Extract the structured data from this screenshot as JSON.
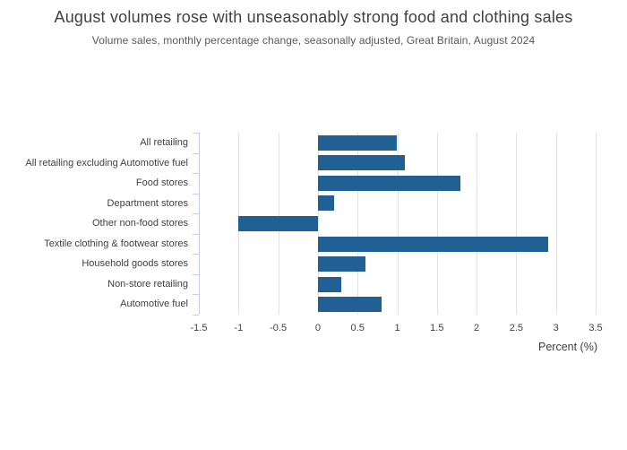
{
  "header": {
    "title": "August volumes rose with unseasonably strong food and clothing sales",
    "subtitle": "Volume sales, monthly percentage change, seasonally adjusted, Great Britain, August 2024"
  },
  "chart_data": {
    "type": "bar",
    "orientation": "horizontal",
    "title": "August volumes rose with unseasonably strong food and clothing sales",
    "subtitle": "Volume sales, monthly percentage change, seasonally adjusted, Great Britain, August 2024",
    "categories": [
      "All retailing",
      "All retailing excluding Automotive fuel",
      "Food stores",
      "Department stores",
      "Other non-food stores",
      "Textile clothing & footwear stores",
      "Household goods stores",
      "Non-store retailing",
      "Automotive fuel"
    ],
    "values": [
      1.0,
      1.1,
      1.8,
      0.2,
      -1.0,
      2.9,
      0.6,
      0.3,
      0.8
    ],
    "xlabel": "Percent (%)",
    "ylabel": "",
    "xlim": [
      -1.5,
      3.5
    ],
    "xticks": [
      {
        "value": -1.5,
        "label": "-1.5"
      },
      {
        "value": -1.0,
        "label": "-1"
      },
      {
        "value": -0.5,
        "label": "-0.5"
      },
      {
        "value": 0.0,
        "label": "0"
      },
      {
        "value": 0.5,
        "label": "0.5"
      },
      {
        "value": 1.0,
        "label": "1"
      },
      {
        "value": 1.5,
        "label": "1.5"
      },
      {
        "value": 2.0,
        "label": "2"
      },
      {
        "value": 2.5,
        "label": "2.5"
      },
      {
        "value": 3.0,
        "label": "3"
      },
      {
        "value": 3.5,
        "label": "3.5"
      }
    ],
    "grid": "vertical",
    "legend": "none",
    "colors": {
      "bar": "#206095",
      "gridline": "#e2e2e2",
      "axis_line": "#c5d0e2",
      "title_text": "#414042",
      "subtitle_text": "#595959",
      "label_text": "#414042"
    }
  }
}
